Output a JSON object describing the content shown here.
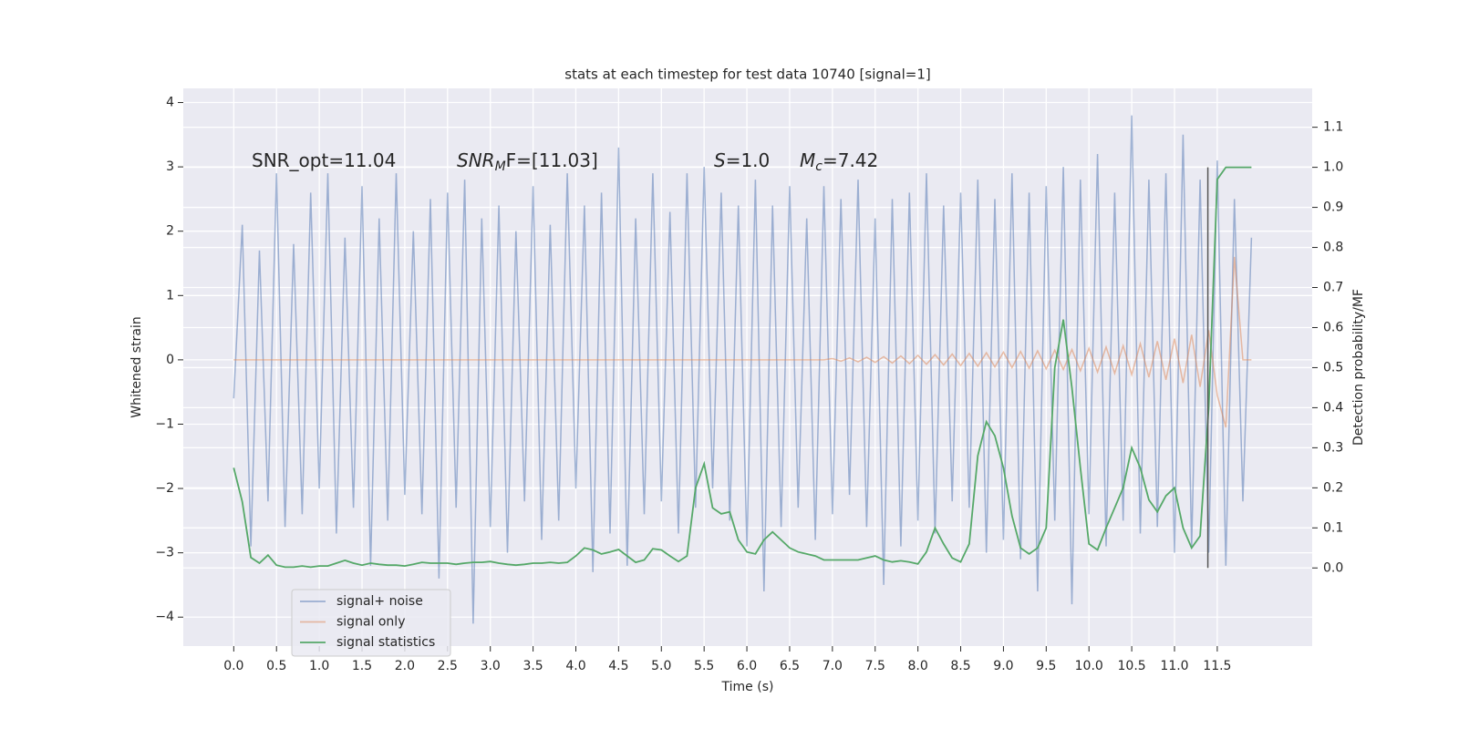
{
  "chart_data": {
    "type": "line",
    "title": "stats at each timestep for test data 10740 [signal=1]",
    "xlabel": "Time (s)",
    "ylabel": "Whitened strain",
    "y2label": "Detection probability/MF",
    "background": "#eaeaf2",
    "grid": true,
    "legend": "lower left",
    "annotations": [
      {
        "base": "SNR_opt=11.04"
      },
      {
        "base": "SNR",
        "sub": "M",
        "rest": "F=[11.03]"
      },
      {
        "base": "S",
        "rest": "=1.0"
      },
      {
        "base": "M",
        "sub": "c",
        "rest": "=7.42"
      }
    ],
    "vline": {
      "x": 11.39,
      "ymin": 0,
      "ymax": 1,
      "axis": "y2",
      "color": "#555555"
    },
    "xlim": [
      -0.59,
      12.61
    ],
    "ylim": [
      -4.45,
      4.22
    ],
    "y2lim": [
      -0.195,
      1.197
    ],
    "xticks": [
      {
        "value": 0,
        "label": "0.0"
      },
      0.5,
      {
        "value": 1,
        "label": "1.0"
      },
      1.5,
      {
        "value": 2,
        "label": "2.0"
      },
      2.5,
      {
        "value": 3,
        "label": "3.0"
      },
      3.5,
      {
        "value": 4,
        "label": "4.0"
      },
      4.5,
      {
        "value": 5,
        "label": "5.0"
      },
      5.5,
      {
        "value": 6,
        "label": "6.0"
      },
      6.5,
      {
        "value": 7,
        "label": "7.0"
      },
      7.5,
      {
        "value": 8,
        "label": "8.0"
      },
      8.5,
      {
        "value": 9,
        "label": "9.0"
      },
      9.5,
      {
        "value": 10,
        "label": "10.0"
      },
      10.5,
      {
        "value": 11,
        "label": "11.0"
      },
      11.5
    ],
    "yticks": [
      {
        "value": -4,
        "label": "−4"
      },
      {
        "value": -3,
        "label": "−3"
      },
      {
        "value": -2,
        "label": "−2"
      },
      {
        "value": -1,
        "label": "−1"
      },
      0,
      1,
      2,
      3,
      4
    ],
    "y2ticks": [
      {
        "value": 0,
        "label": "0.0"
      },
      0.1,
      0.2,
      0.3,
      0.4,
      0.5,
      0.6,
      0.7,
      0.8,
      0.9,
      {
        "value": 1,
        "label": "1.0"
      },
      1.1
    ],
    "x": [
      0,
      0.1,
      0.2,
      0.3,
      0.4,
      0.5,
      0.6,
      0.7,
      0.8,
      0.9,
      1,
      1.1,
      1.2,
      1.3,
      1.4,
      1.5,
      1.6,
      1.7,
      1.8,
      1.9,
      2,
      2.1,
      2.2,
      2.3,
      2.4,
      2.5,
      2.6,
      2.7,
      2.8,
      2.9,
      3,
      3.1,
      3.2,
      3.3,
      3.4,
      3.5,
      3.6,
      3.7,
      3.8,
      3.9,
      4,
      4.1,
      4.2,
      4.3,
      4.4,
      4.5,
      4.6,
      4.7,
      4.8,
      4.9,
      5,
      5.1,
      5.2,
      5.3,
      5.4,
      5.5,
      5.6,
      5.7,
      5.8,
      5.9,
      6,
      6.1,
      6.2,
      6.3,
      6.4,
      6.5,
      6.6,
      6.7,
      6.8,
      6.9,
      7,
      7.1,
      7.2,
      7.3,
      7.4,
      7.5,
      7.6,
      7.7,
      7.8,
      7.9,
      8,
      8.1,
      8.2,
      8.3,
      8.4,
      8.5,
      8.6,
      8.7,
      8.8,
      8.9,
      9,
      9.1,
      9.2,
      9.3,
      9.4,
      9.5,
      9.6,
      9.7,
      9.8,
      9.9,
      10,
      10.1,
      10.2,
      10.3,
      10.4,
      10.5,
      10.6,
      10.7,
      10.8,
      10.9,
      11,
      11.1,
      11.2,
      11.3,
      11.4,
      11.5,
      11.6,
      11.7,
      11.8,
      11.9
    ],
    "series": [
      {
        "name": "signal+ noise",
        "color": "#4c72b0",
        "opacity": 0.5,
        "values": [
          -0.6,
          2.1,
          -2.9,
          1.7,
          -2.2,
          2.9,
          -2.6,
          1.8,
          -2.4,
          2.6,
          -2.0,
          2.9,
          -2.7,
          1.9,
          -2.3,
          2.7,
          -3.2,
          2.2,
          -2.5,
          2.9,
          -2.1,
          2.0,
          -2.4,
          2.5,
          -3.4,
          2.6,
          -2.3,
          2.8,
          -4.1,
          2.2,
          -2.6,
          2.4,
          -3.0,
          2.0,
          -2.2,
          2.7,
          -2.8,
          2.1,
          -2.5,
          2.9,
          -2.0,
          2.4,
          -3.3,
          2.6,
          -2.7,
          3.3,
          -3.2,
          2.2,
          -2.4,
          2.9,
          -2.2,
          2.3,
          -2.7,
          2.9,
          -2.3,
          3.0,
          -2.0,
          2.6,
          -2.5,
          2.4,
          -2.9,
          2.8,
          -3.6,
          2.4,
          -2.6,
          2.7,
          -2.3,
          2.2,
          -2.8,
          2.7,
          -2.4,
          2.5,
          -2.1,
          2.8,
          -2.6,
          2.2,
          -3.5,
          2.5,
          -2.9,
          2.6,
          -2.5,
          2.9,
          -2.7,
          2.4,
          -2.2,
          2.6,
          -2.3,
          2.8,
          -3.0,
          2.5,
          -2.8,
          2.9,
          -3.1,
          2.6,
          -3.6,
          2.7,
          -2.5,
          3.0,
          -3.8,
          2.8,
          -2.4,
          3.2,
          -2.9,
          2.6,
          -2.5,
          3.8,
          -2.7,
          2.8,
          -2.6,
          2.9,
          -3.0,
          3.5,
          -2.9,
          2.8,
          -3.0,
          3.1,
          -3.2,
          2.5,
          -2.2,
          1.9
        ]
      },
      {
        "name": "signal only",
        "color": "#dd8452",
        "opacity": 0.5,
        "values": [
          0,
          0,
          0,
          0,
          0,
          0,
          0,
          0,
          0,
          0,
          0,
          0,
          0,
          0,
          0,
          0,
          0,
          0,
          0,
          0,
          0,
          0,
          0,
          0,
          0,
          0,
          0,
          0,
          0,
          0,
          0,
          0,
          0,
          0,
          0,
          0,
          0,
          0,
          0,
          0,
          0,
          0,
          0,
          0,
          0,
          0,
          0,
          0,
          0,
          0,
          0,
          0,
          0,
          0,
          0,
          0,
          0,
          0,
          0,
          0,
          0,
          0,
          0,
          0,
          0,
          0,
          0,
          0,
          0,
          0,
          0.02,
          -0.02,
          0.03,
          -0.03,
          0.04,
          -0.04,
          0.05,
          -0.05,
          0.06,
          -0.06,
          0.07,
          -0.07,
          0.08,
          -0.08,
          0.09,
          -0.09,
          0.1,
          -0.1,
          0.11,
          -0.11,
          0.12,
          -0.12,
          0.13,
          -0.13,
          0.14,
          -0.14,
          0.15,
          -0.15,
          0.16,
          -0.17,
          0.18,
          -0.19,
          0.2,
          -0.21,
          0.22,
          -0.23,
          0.25,
          -0.27,
          0.29,
          -0.31,
          0.33,
          -0.36,
          0.39,
          -0.42,
          0.46,
          -0.55,
          -1.05,
          1.6,
          0,
          0
        ]
      },
      {
        "name": "signal statistics",
        "color": "#55a868",
        "opacity": 1,
        "axis": "y2",
        "values": [
          0.25,
          0.165,
          0.026,
          0.012,
          0.032,
          0.007,
          0.002,
          0.002,
          0.005,
          0.002,
          0.005,
          0.005,
          0.012,
          0.019,
          0.012,
          0.007,
          0.012,
          0.009,
          0.007,
          0.007,
          0.005,
          0.009,
          0.014,
          0.012,
          0.012,
          0.012,
          0.009,
          0.012,
          0.014,
          0.014,
          0.016,
          0.012,
          0.009,
          0.007,
          0.009,
          0.012,
          0.012,
          0.014,
          0.012,
          0.014,
          0.03,
          0.05,
          0.045,
          0.035,
          0.04,
          0.046,
          0.03,
          0.014,
          0.02,
          0.048,
          0.045,
          0.03,
          0.016,
          0.03,
          0.2,
          0.26,
          0.15,
          0.135,
          0.14,
          0.07,
          0.04,
          0.035,
          0.07,
          0.09,
          0.07,
          0.05,
          0.04,
          0.035,
          0.03,
          0.02,
          0.02,
          0.02,
          0.02,
          0.02,
          0.025,
          0.03,
          0.02,
          0.015,
          0.018,
          0.015,
          0.01,
          0.04,
          0.1,
          0.06,
          0.025,
          0.015,
          0.06,
          0.28,
          0.365,
          0.33,
          0.25,
          0.13,
          0.05,
          0.035,
          0.05,
          0.1,
          0.5,
          0.62,
          0.45,
          0.25,
          0.06,
          0.045,
          0.1,
          0.15,
          0.2,
          0.3,
          0.25,
          0.17,
          0.14,
          0.18,
          0.2,
          0.1,
          0.05,
          0.08,
          0.4,
          0.97,
          1.0,
          1.0,
          1.0,
          1.0
        ]
      }
    ]
  }
}
